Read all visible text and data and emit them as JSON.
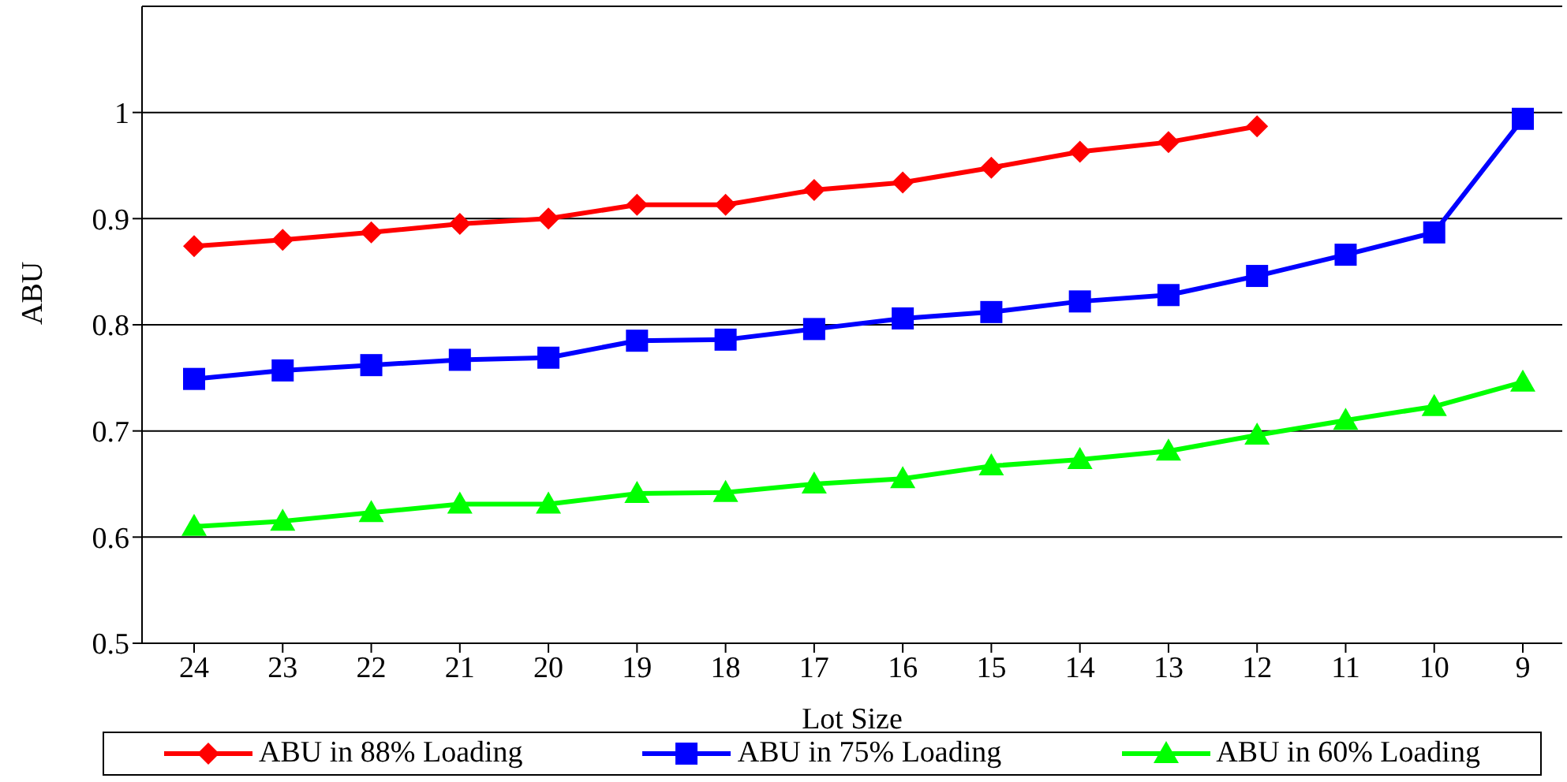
{
  "chart_data": {
    "type": "line",
    "xlabel": "Lot Size",
    "ylabel": "ABU",
    "categories": [
      "24",
      "23",
      "22",
      "21",
      "20",
      "19",
      "18",
      "17",
      "16",
      "15",
      "14",
      "13",
      "12",
      "11",
      "10",
      "9"
    ],
    "series": [
      {
        "name": "ABU in 88% Loading",
        "color": "#ff0000",
        "marker": "diamond",
        "values": [
          0.874,
          0.88,
          0.887,
          0.895,
          0.9,
          0.913,
          0.913,
          0.927,
          0.934,
          0.948,
          0.963,
          0.972,
          0.987,
          null,
          null,
          null
        ]
      },
      {
        "name": "ABU in 75% Loading",
        "color": "#0000ff",
        "marker": "square",
        "values": [
          0.749,
          0.757,
          0.762,
          0.767,
          0.769,
          0.785,
          0.786,
          0.796,
          0.806,
          0.812,
          0.822,
          0.828,
          0.846,
          0.866,
          0.887,
          0.994
        ]
      },
      {
        "name": "ABU in 60% Loading",
        "color": "#00ff00",
        "marker": "triangle",
        "values": [
          0.61,
          0.615,
          0.623,
          0.631,
          0.631,
          0.641,
          0.642,
          0.65,
          0.655,
          0.667,
          0.673,
          0.681,
          0.696,
          0.71,
          0.723,
          0.746
        ]
      }
    ],
    "ylim": [
      0.5,
      1.1
    ],
    "yticks": [
      0.5,
      0.6,
      0.7,
      0.8,
      0.9,
      1
    ],
    "grid": "y",
    "legend": "bottom"
  }
}
